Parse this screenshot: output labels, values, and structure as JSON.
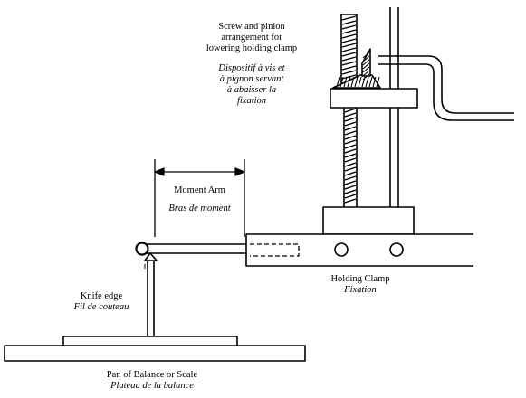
{
  "labels": {
    "screw": {
      "en": [
        "Screw and pinion",
        "arrangement for",
        "lowering holding clamp"
      ],
      "fr": [
        "Dispositif à vis et",
        "à pignon servant",
        "à abaisser la",
        "fixation"
      ]
    },
    "moment_arm": {
      "en": "Moment Arm",
      "fr": "Bras de moment"
    },
    "knife_edge": {
      "en": "Knife edge",
      "fr": "Fil de couteau"
    },
    "holding_clamp": {
      "en": "Holding Clamp",
      "fr": "Fixation"
    },
    "pan": {
      "en": "Pan of Balance or Scale",
      "fr": "Plateau de la balance"
    }
  }
}
